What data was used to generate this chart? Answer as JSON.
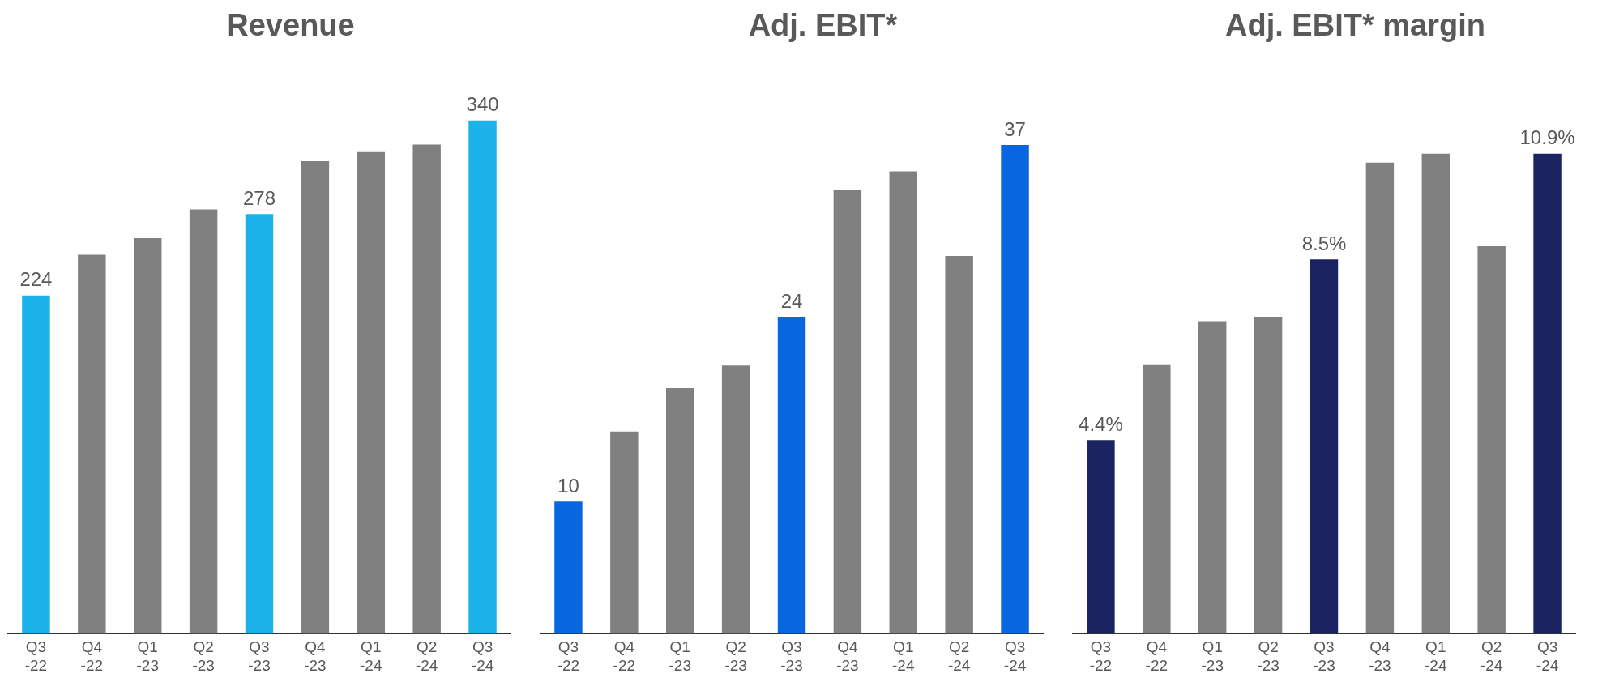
{
  "chart_data": [
    {
      "type": "bar",
      "title": "Revenue",
      "categories": [
        "Q3 -22",
        "Q4 -22",
        "Q1 -23",
        "Q2 -23",
        "Q3 -23",
        "Q4 -23",
        "Q1 -24",
        "Q2 -24",
        "Q3 -24"
      ],
      "values": [
        224,
        251,
        262,
        281,
        278,
        313,
        319,
        324,
        340
      ],
      "colors": [
        "#1ab2e8",
        "#808080",
        "#808080",
        "#808080",
        "#1ab2e8",
        "#808080",
        "#808080",
        "#808080",
        "#1ab2e8"
      ],
      "value_labels": [
        "224",
        null,
        null,
        null,
        "278",
        null,
        null,
        null,
        "340"
      ]
    },
    {
      "type": "bar",
      "title": "Adj. EBIT*",
      "categories": [
        "Q3 -22",
        "Q4 -22",
        "Q1 -23",
        "Q2 -23",
        "Q3 -23",
        "Q4 -23",
        "Q1 -24",
        "Q2 -24",
        "Q3 -24"
      ],
      "values": [
        10,
        15.3,
        18.6,
        20.3,
        24,
        33.6,
        35,
        28.6,
        37
      ],
      "colors": [
        "#0866e0",
        "#808080",
        "#808080",
        "#808080",
        "#0866e0",
        "#808080",
        "#808080",
        "#808080",
        "#0866e0"
      ],
      "value_labels": [
        "10",
        null,
        null,
        null,
        "24",
        null,
        null,
        null,
        "37"
      ]
    },
    {
      "type": "bar",
      "title": "Adj. EBIT* margin",
      "categories": [
        "Q3 -22",
        "Q4 -22",
        "Q1 -23",
        "Q2 -23",
        "Q3 -23",
        "Q4 -23",
        "Q1 -24",
        "Q2 -24",
        "Q3 -24"
      ],
      "values": [
        4.4,
        6.1,
        7.1,
        7.2,
        8.5,
        10.7,
        10.9,
        8.8,
        10.9
      ],
      "colors": [
        "#1b2360",
        "#808080",
        "#808080",
        "#808080",
        "#1b2360",
        "#808080",
        "#808080",
        "#808080",
        "#1b2360"
      ],
      "value_labels": [
        "4.4%",
        null,
        null,
        null,
        "8.5%",
        null,
        null,
        null,
        "10.9%"
      ]
    }
  ]
}
